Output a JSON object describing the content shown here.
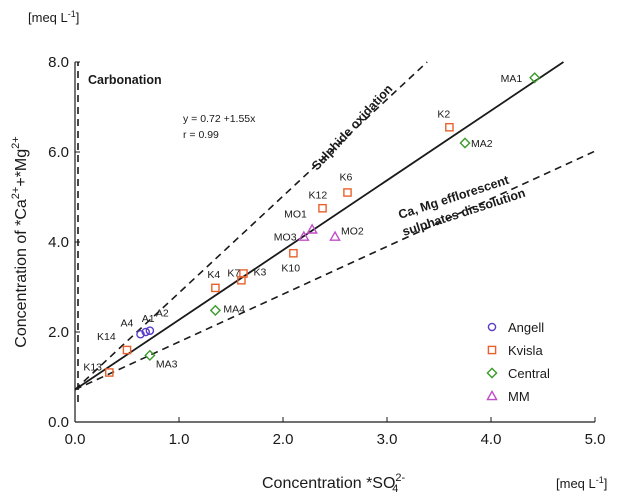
{
  "chart_data": {
    "type": "scatter",
    "title": "",
    "xlabel": "Concentration *SO",
    "xlabel_sub": "4",
    "xlabel_sup": "2-",
    "ylabel": "Concentration of *Ca",
    "ylabel_sup1": "2+",
    "ylabel_mid": "+*Mg",
    "ylabel_sup2": "2+",
    "x_unit": "[meq L",
    "x_unit_sup": "-1",
    "x_unit_end": "]",
    "y_unit": "[meq L",
    "y_unit_sup": "-1",
    "y_unit_end": "]",
    "xlim": [
      0,
      5
    ],
    "ylim": [
      0,
      8
    ],
    "x_ticks": [
      "0.0",
      "1.0",
      "2.0",
      "3.0",
      "4.0",
      "5.0"
    ],
    "y_ticks": [
      "0.0",
      "2.0",
      "4.0",
      "6.0",
      "8.0"
    ],
    "grid": false,
    "legend_position": "bottom-right",
    "series": [
      {
        "name": "Angell",
        "color": "#5a3cc8",
        "marker": "circle",
        "points": [
          {
            "label": "A4",
            "x": 0.63,
            "y": 1.95
          },
          {
            "label": "A1",
            "x": 0.68,
            "y": 2.0
          },
          {
            "label": "A2",
            "x": 0.72,
            "y": 2.03
          }
        ]
      },
      {
        "name": "Kvisla",
        "color": "#e8602c",
        "marker": "square",
        "points": [
          {
            "label": "K13",
            "x": 0.33,
            "y": 1.1
          },
          {
            "label": "K14",
            "x": 0.5,
            "y": 1.6
          },
          {
            "label": "K4",
            "x": 1.35,
            "y": 2.98
          },
          {
            "label": "K7",
            "x": 1.6,
            "y": 3.15
          },
          {
            "label": "K3",
            "x": 1.62,
            "y": 3.3
          },
          {
            "label": "K10",
            "x": 2.1,
            "y": 3.75
          },
          {
            "label": "K12",
            "x": 2.38,
            "y": 4.75
          },
          {
            "label": "K6",
            "x": 2.62,
            "y": 5.1
          },
          {
            "label": "K2",
            "x": 3.6,
            "y": 6.55
          }
        ]
      },
      {
        "name": "Central",
        "color": "#3a9a2a",
        "marker": "diamond",
        "points": [
          {
            "label": "MA3",
            "x": 0.72,
            "y": 1.48
          },
          {
            "label": "MA4",
            "x": 1.35,
            "y": 2.48
          },
          {
            "label": "MA2",
            "x": 3.75,
            "y": 6.2
          },
          {
            "label": "MA1",
            "x": 4.42,
            "y": 7.65
          }
        ]
      },
      {
        "name": "MM",
        "color": "#c04ec8",
        "marker": "triangle",
        "points": [
          {
            "label": "MO3",
            "x": 2.2,
            "y": 4.12
          },
          {
            "label": "MO1",
            "x": 2.28,
            "y": 4.28
          },
          {
            "label": "MO2",
            "x": 2.5,
            "y": 4.12
          }
        ]
      }
    ],
    "regression": {
      "equation": "y = 0.72 +1.55x",
      "r_text": "r = 0.99",
      "intercept": 0.72,
      "slope": 1.55
    },
    "reference_lines": [
      {
        "label": "Carbonation",
        "x": 0.0
      },
      {
        "label": "Sulphide oxidation",
        "intercept": 0.72,
        "slope": 2.15
      },
      {
        "label_line1": "Ca, Mg efflorescent",
        "label_line2": "sulphates dissolution",
        "intercept": 0.72,
        "slope": 1.06
      }
    ]
  }
}
